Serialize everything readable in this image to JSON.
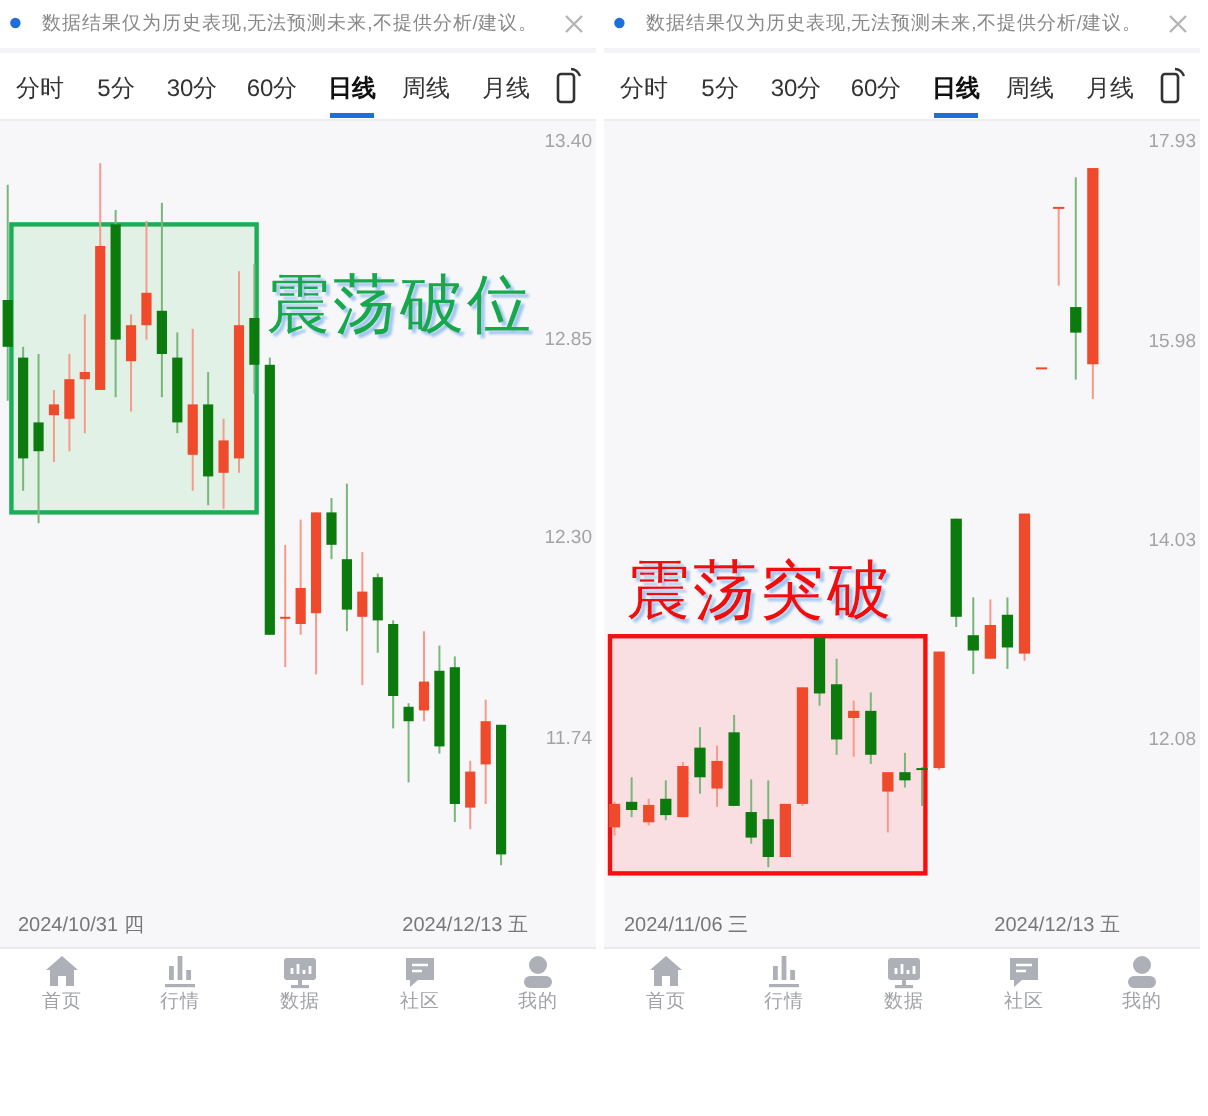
{
  "chart_data": [
    {
      "type": "candlestick",
      "categories": [
        null,
        null,
        null,
        null,
        null,
        null,
        null,
        null,
        null,
        null,
        null,
        null,
        null,
        null,
        null,
        null,
        null,
        null,
        null,
        null,
        null,
        null,
        null,
        null,
        null,
        null,
        null,
        null,
        null,
        null,
        null,
        null,
        null
      ],
      "ohlc": [
        [
          12.96,
          13.28,
          12.68,
          12.83
        ],
        [
          12.8,
          12.83,
          12.43,
          12.52
        ],
        [
          12.62,
          12.81,
          12.34,
          12.54
        ],
        [
          12.64,
          12.71,
          12.51,
          12.67
        ],
        [
          12.63,
          12.81,
          12.54,
          12.74
        ],
        [
          12.74,
          12.92,
          12.59,
          12.76
        ],
        [
          12.71,
          13.34,
          12.71,
          13.11
        ],
        [
          13.17,
          13.21,
          12.69,
          12.85
        ],
        [
          12.79,
          12.92,
          12.65,
          12.89
        ],
        [
          12.89,
          13.18,
          12.85,
          12.98
        ],
        [
          12.93,
          13.23,
          12.69,
          12.81
        ],
        [
          12.8,
          12.87,
          12.59,
          12.62
        ],
        [
          12.53,
          12.88,
          12.43,
          12.67
        ],
        [
          12.67,
          12.76,
          12.39,
          12.47
        ],
        [
          12.48,
          12.63,
          12.38,
          12.57
        ],
        [
          12.52,
          13.04,
          12.48,
          12.89
        ],
        [
          12.91,
          13.06,
          12.7,
          12.78
        ],
        [
          12.78,
          12.8,
          12.03,
          12.03
        ],
        [
          12.08,
          12.28,
          11.94,
          12.08
        ],
        [
          12.06,
          12.35,
          12.03,
          12.16
        ],
        [
          12.09,
          12.37,
          11.92,
          12.37
        ],
        [
          12.37,
          12.41,
          12.24,
          12.28
        ],
        [
          12.24,
          12.45,
          12.04,
          12.1
        ],
        [
          12.08,
          12.26,
          11.89,
          12.15
        ],
        [
          12.19,
          12.2,
          11.98,
          12.07
        ],
        [
          12.06,
          12.07,
          11.77,
          11.86
        ],
        [
          11.83,
          11.84,
          11.62,
          11.79
        ],
        [
          11.82,
          12.04,
          11.79,
          11.9
        ],
        [
          11.93,
          12.0,
          11.7,
          11.72
        ],
        [
          11.94,
          11.97,
          11.51,
          11.56
        ],
        [
          11.55,
          11.68,
          11.49,
          11.65
        ],
        [
          11.67,
          11.85,
          11.56,
          11.79
        ],
        [
          11.78,
          11.78,
          11.39,
          11.42
        ]
      ],
      "colors": [
        "#0b7b0d",
        "#0b7b0d",
        "#0b7b0d",
        "#ef4a2b",
        "#ef4a2b",
        "#ef4a2b",
        "#ef4a2b",
        "#0b7b0d",
        "#ef4a2b",
        "#ef4a2b",
        "#0b7b0d",
        "#0b7b0d",
        "#ef4a2b",
        "#0b7b0d",
        "#ef4a2b",
        "#ef4a2b",
        "#0b7b0d",
        "#0b7b0d",
        "#ef4a2b",
        "#ef4a2b",
        "#ef4a2b",
        "#0b7b0d",
        "#0b7b0d",
        "#ef4a2b",
        "#0b7b0d",
        "#0b7b0d",
        "#0b7b0d",
        "#ef4a2b",
        "#0b7b0d",
        "#0b7b0d",
        "#ef4a2b",
        "#ef4a2b",
        "#0b7b0d"
      ],
      "ylim": [
        11.16,
        13.46
      ],
      "yticks": [
        {
          "value": 13.4,
          "label": "13.40"
        },
        12.85,
        {
          "value": 12.3,
          "label": "12.30"
        },
        11.74
      ],
      "bands": [
        {
          "axis": "y",
          "from": 12.37,
          "to": 13.17,
          "label": "震荡破位",
          "color": "#e2f1e5"
        }
      ],
      "annotations": [
        "数据结果仅为历史表现,无法预测未来,不提供分析/建议。",
        "分时",
        "5分",
        "30分",
        "60分",
        "日线",
        "周线",
        "月线",
        "2024/10/31 四",
        "2024/12/13 五",
        "首页",
        "行情",
        "数据",
        "社区",
        "我的"
      ]
    },
    {
      "type": "candlestick",
      "categories": [
        null,
        null,
        null,
        null,
        null,
        null,
        null,
        null,
        null,
        null,
        null,
        null,
        null,
        null,
        null,
        null,
        null,
        null,
        null,
        null,
        null,
        null,
        null,
        null,
        null,
        null,
        null,
        null,
        null
      ],
      "ohlc": [
        [
          11.23,
          11.48,
          11.15,
          11.46
        ],
        [
          11.48,
          11.72,
          11.33,
          11.4
        ],
        [
          11.28,
          11.51,
          11.25,
          11.45
        ],
        [
          11.51,
          11.69,
          11.3,
          11.35
        ],
        [
          11.33,
          11.87,
          11.33,
          11.83
        ],
        [
          12.01,
          12.21,
          11.56,
          11.72
        ],
        [
          11.61,
          12.03,
          11.43,
          11.88
        ],
        [
          12.16,
          12.33,
          11.44,
          11.44
        ],
        [
          11.38,
          11.7,
          11.07,
          11.13
        ],
        [
          11.31,
          11.69,
          10.84,
          10.94
        ],
        [
          10.94,
          11.46,
          10.94,
          11.46
        ],
        [
          11.46,
          12.6,
          11.44,
          12.6
        ],
        [
          13.09,
          13.09,
          12.42,
          12.54
        ],
        [
          12.63,
          12.88,
          11.94,
          12.09
        ],
        [
          12.3,
          12.47,
          11.92,
          12.37
        ],
        [
          12.37,
          12.55,
          11.85,
          11.94
        ],
        [
          11.58,
          11.77,
          11.18,
          11.77
        ],
        [
          11.77,
          11.96,
          11.62,
          11.69
        ],
        [
          11.81,
          11.82,
          11.44,
          11.8
        ],
        [
          11.81,
          12.95,
          11.79,
          12.95
        ],
        [
          14.25,
          14.25,
          13.19,
          13.29
        ],
        [
          13.11,
          13.48,
          12.73,
          12.96
        ],
        [
          12.88,
          13.46,
          12.88,
          13.21
        ],
        [
          13.31,
          13.48,
          12.78,
          12.99
        ],
        [
          12.93,
          14.3,
          12.86,
          14.3
        ],
        [
          15.73,
          15.73,
          15.73,
          15.73
        ],
        [
          17.3,
          17.3,
          16.53,
          17.3
        ],
        [
          16.32,
          17.59,
          15.61,
          16.07
        ],
        [
          15.76,
          17.68,
          15.42,
          17.68
        ]
      ],
      "colors": [
        "#ef4a2b",
        "#0b7b0d",
        "#ef4a2b",
        "#0b7b0d",
        "#ef4a2b",
        "#0b7b0d",
        "#ef4a2b",
        "#0b7b0d",
        "#0b7b0d",
        "#0b7b0d",
        "#ef4a2b",
        "#ef4a2b",
        "#0b7b0d",
        "#0b7b0d",
        "#ef4a2b",
        "#0b7b0d",
        "#ef4a2b",
        "#0b7b0d",
        "#0b7b0d",
        "#ef4a2b",
        "#0b7b0d",
        "#0b7b0d",
        "#ef4a2b",
        "#0b7b0d",
        "#ef4a2b",
        "#ef4a2b",
        "#ef4a2b",
        "#0b7b0d",
        "#ef4a2b"
      ],
      "ylim": [
        10.05,
        18.15
      ],
      "yticks": [
        17.93,
        15.98,
        14.03,
        12.08
      ],
      "bands": [
        {
          "axis": "y",
          "from": 10.78,
          "to": 13.1,
          "label": "震荡突破",
          "color": "#fadfe2"
        }
      ],
      "annotations": [
        "数据结果仅为历史表现,无法预测未来,不提供分析/建议。",
        "分时",
        "5分",
        "30分",
        "60分",
        "日线",
        "周线",
        "月线",
        "2024/11/06 三",
        "2024/12/13 五",
        "首页",
        "行情",
        "数据",
        "社区",
        "我的"
      ]
    }
  ]
}
